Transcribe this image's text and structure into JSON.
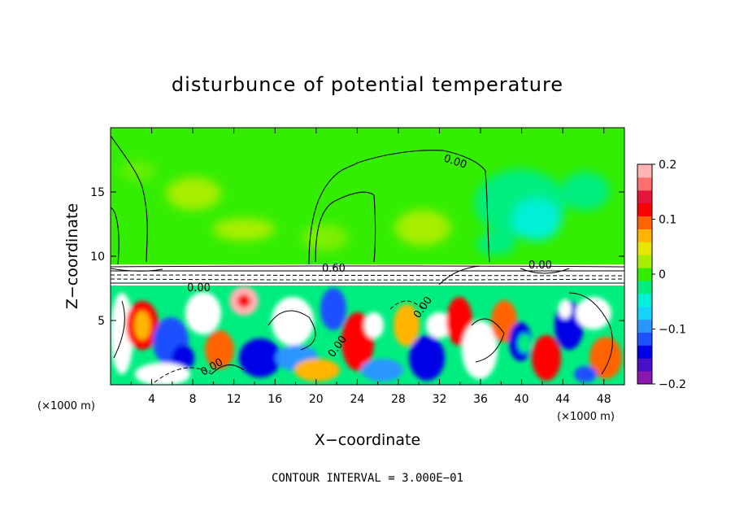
{
  "chart_data": {
    "type": "heatmap",
    "title": "disturbunce of potential temperature",
    "xlabel": "X−coordinate",
    "ylabel": "Z−coordinate",
    "x_unit_left": "(×1000 m)",
    "x_unit_right": "(×1000 m)",
    "xlim": [
      0,
      50
    ],
    "ylim": [
      0,
      20
    ],
    "x_ticks": [
      4,
      8,
      12,
      16,
      20,
      24,
      28,
      32,
      36,
      40,
      44,
      48
    ],
    "y_ticks": [
      5,
      10,
      15
    ],
    "colorbar": {
      "vmin": -0.2,
      "vmax": 0.2,
      "tick_values": [
        0.2,
        0.1,
        0,
        -0.1,
        -0.2
      ],
      "tick_labels": [
        "0.2",
        "0.1",
        "0",
        "−0.1",
        "−0.2"
      ]
    },
    "contour_labels": [
      "0.00",
      "0.60",
      "0.00",
      "0.00",
      "0.00",
      "0.00",
      "0.00"
    ],
    "note": "CONTOUR INTERVAL = 3.000E−01"
  },
  "colors": {
    "background_green": "#33ee00",
    "colorbar_stops": [
      "#8a18b0",
      "#4a10c8",
      "#0000e6",
      "#1e50ff",
      "#2a96ff",
      "#15d2ff",
      "#00f0d8",
      "#00ee80",
      "#33ee00",
      "#a8ee00",
      "#e6e600",
      "#ffb400",
      "#ff6400",
      "#ff0000",
      "#e6143c",
      "#ff6e6e",
      "#ffb4b4"
    ]
  }
}
